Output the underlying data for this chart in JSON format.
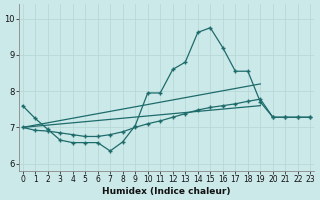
{
  "xlabel": "Humidex (Indice chaleur)",
  "background_color": "#cce9e9",
  "grid_color": "#b8d8d8",
  "line_color": "#1e6b6b",
  "x_ticks": [
    0,
    1,
    2,
    3,
    4,
    5,
    6,
    7,
    8,
    9,
    10,
    11,
    12,
    13,
    14,
    15,
    16,
    17,
    18,
    19,
    20,
    21,
    22,
    23
  ],
  "y_ticks": [
    6,
    7,
    8,
    9,
    10
  ],
  "ylim": [
    5.8,
    10.4
  ],
  "xlim": [
    -0.3,
    23.3
  ],
  "line1_x": [
    0,
    1,
    2,
    3,
    4,
    5,
    6,
    7,
    8,
    9,
    10,
    11,
    12,
    13,
    14,
    15,
    16,
    17,
    18,
    19,
    20,
    21,
    22,
    23
  ],
  "line1_y": [
    7.6,
    7.25,
    6.95,
    6.65,
    6.58,
    6.58,
    6.58,
    6.35,
    6.6,
    7.05,
    7.95,
    7.95,
    8.6,
    8.8,
    9.62,
    9.75,
    9.2,
    8.55,
    8.55,
    7.7,
    7.28,
    7.28,
    7.28,
    7.28
  ],
  "line2_x": [
    0,
    1,
    2,
    3,
    4,
    5,
    6,
    7,
    8,
    9,
    10,
    11,
    12,
    13,
    14,
    15,
    16,
    17,
    18,
    19,
    20,
    21,
    22,
    23
  ],
  "line2_y": [
    7.0,
    6.92,
    6.9,
    6.85,
    6.8,
    6.75,
    6.75,
    6.8,
    6.88,
    7.0,
    7.1,
    7.18,
    7.28,
    7.38,
    7.48,
    7.55,
    7.6,
    7.65,
    7.72,
    7.78,
    7.28,
    7.28,
    7.28,
    7.28
  ],
  "line3_x": [
    0,
    19
  ],
  "line3_y": [
    7.0,
    8.2
  ],
  "line4_x": [
    0,
    19
  ],
  "line4_y": [
    7.0,
    7.6
  ]
}
